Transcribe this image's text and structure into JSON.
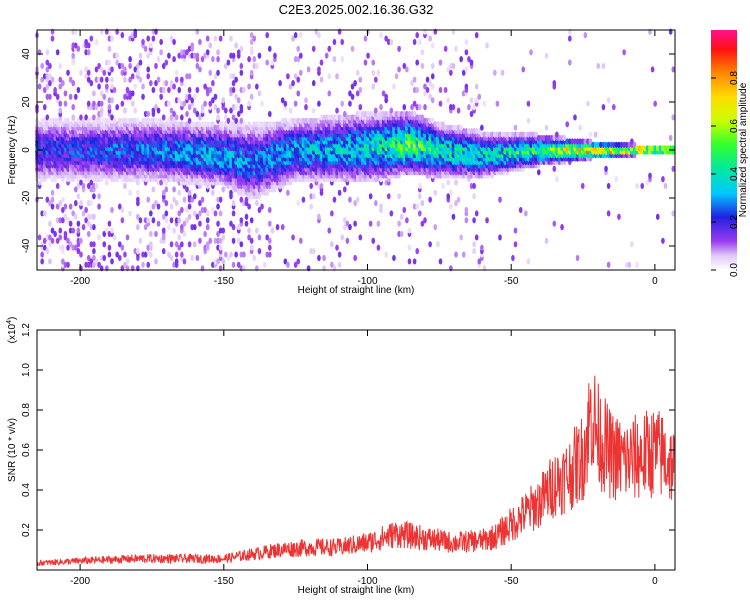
{
  "title": "C2E3.2025.002.16.36.G32",
  "chart_data": [
    {
      "type": "heatmap",
      "xlabel": "Height of straight line (km)",
      "ylabel": "Frequency (Hz)",
      "xlim": [
        -215,
        7
      ],
      "ylim": [
        -50,
        50
      ],
      "xticks": [
        -200,
        -150,
        -100,
        -50,
        0
      ],
      "yticks": [
        -40,
        -20,
        0,
        20,
        40
      ],
      "colorbar": {
        "label": "Normalized spectral amplitude",
        "range": [
          0,
          1
        ],
        "ticks": [
          0.0,
          0.2,
          0.4,
          0.6,
          0.8
        ]
      },
      "band_profile": {
        "x": [
          -200,
          -175,
          -150,
          -140,
          -125,
          -100,
          -85,
          -75,
          -60,
          -50,
          -40,
          -30,
          -20,
          -10,
          0,
          7
        ],
        "center_frequency": [
          0,
          0,
          -2,
          -5,
          0,
          1,
          3,
          0,
          -2,
          -1,
          0,
          0,
          0,
          0,
          0,
          0
        ],
        "half_width": [
          8,
          8,
          8,
          10,
          8,
          9,
          8,
          7,
          6,
          5,
          4,
          3,
          2,
          1.5,
          1,
          1
        ],
        "peak_amplitude": [
          0.25,
          0.3,
          0.35,
          0.3,
          0.35,
          0.4,
          0.55,
          0.45,
          0.4,
          0.45,
          0.5,
          0.7,
          0.8,
          0.85,
          0.8,
          0.7
        ]
      }
    },
    {
      "type": "line",
      "xlabel": "Height of straight line (km)",
      "ylabel": "SNR (10 * v/v)",
      "yscale_label": "(x10",
      "yscale_exp": "4",
      "xlim": [
        -215,
        7
      ],
      "ylim": [
        0,
        1.2
      ],
      "xticks": [
        -200,
        -150,
        -100,
        -50,
        0
      ],
      "yticks": [
        0.2,
        0.4,
        0.6,
        0.8,
        1.0,
        1.2
      ],
      "series": [
        {
          "color": "#ee3333",
          "x": [
            -215,
            -200,
            -180,
            -160,
            -150,
            -140,
            -130,
            -120,
            -110,
            -100,
            -90,
            -80,
            -70,
            -60,
            -55,
            -50,
            -45,
            -40,
            -35,
            -30,
            -25,
            -22,
            -20,
            -15,
            -10,
            -5,
            0,
            3,
            7
          ],
          "y": [
            0.03,
            0.04,
            0.05,
            0.05,
            0.05,
            0.07,
            0.09,
            0.1,
            0.1,
            0.12,
            0.16,
            0.14,
            0.12,
            0.13,
            0.15,
            0.2,
            0.25,
            0.3,
            0.38,
            0.42,
            0.5,
            0.7,
            0.6,
            0.5,
            0.48,
            0.5,
            0.52,
            0.5,
            0.45
          ]
        }
      ]
    }
  ]
}
